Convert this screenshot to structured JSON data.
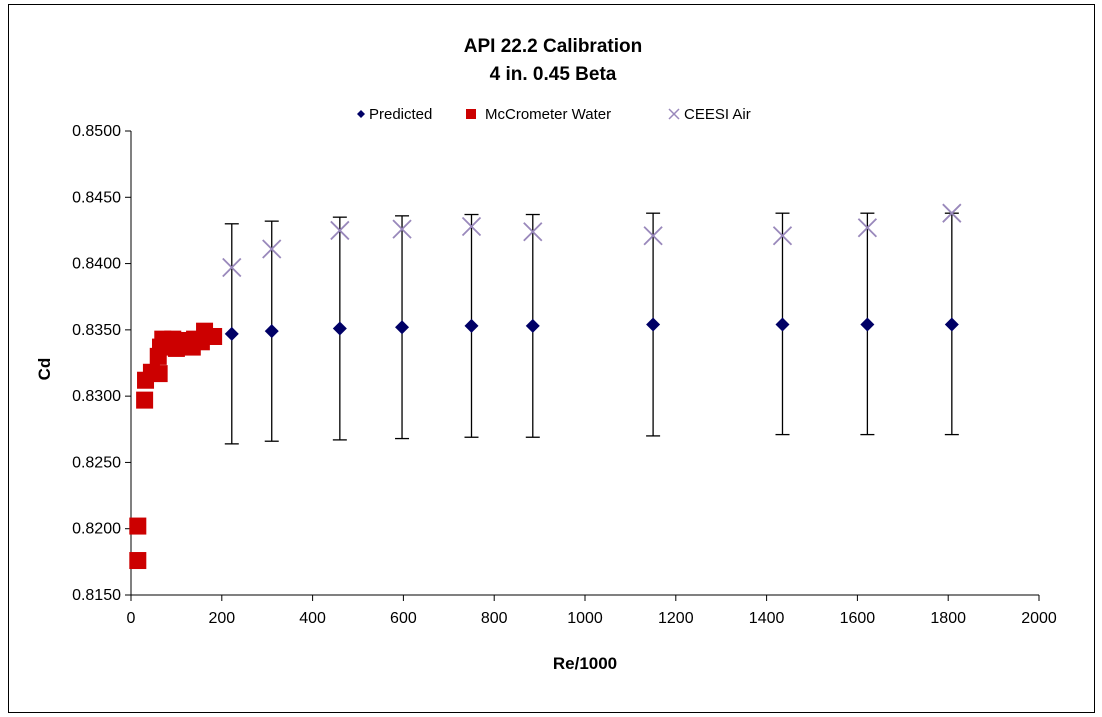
{
  "chart_data": {
    "type": "scatter",
    "title": [
      "API 22.2 Calibration",
      "4 in. 0.45 Beta"
    ],
    "xlabel": "Re/1000",
    "ylabel": "Cd",
    "xlim": [
      0,
      2000
    ],
    "ylim": [
      0.815,
      0.85
    ],
    "x_ticks": [
      0,
      200,
      400,
      600,
      800,
      1000,
      1200,
      1400,
      1600,
      1800,
      2000
    ],
    "x_tick_labels": [
      "0",
      "200",
      "400",
      "600",
      "800",
      "1000",
      "1200",
      "1400",
      "1600",
      "1800",
      "2000"
    ],
    "y_ticks": [
      0.815,
      0.82,
      0.825,
      0.83,
      0.835,
      0.84,
      0.845,
      0.85
    ],
    "y_tick_labels": [
      "0.8150",
      "0.8200",
      "0.8250",
      "0.8300",
      "0.8350",
      "0.8400",
      "0.8450",
      "0.8500"
    ],
    "grid": false,
    "legend_position": "top",
    "series": [
      {
        "name": "Predicted",
        "marker": "diamond",
        "color": "#000066",
        "points": [
          {
            "x": 222,
            "y": 0.8347,
            "err_low": 0.8264,
            "err_high": 0.843
          },
          {
            "x": 310,
            "y": 0.8349,
            "err_low": 0.8266,
            "err_high": 0.8432
          },
          {
            "x": 460,
            "y": 0.8351,
            "err_low": 0.8267,
            "err_high": 0.8435
          },
          {
            "x": 597,
            "y": 0.8352,
            "err_low": 0.8268,
            "err_high": 0.8436
          },
          {
            "x": 750,
            "y": 0.8353,
            "err_low": 0.8269,
            "err_high": 0.8437
          },
          {
            "x": 885,
            "y": 0.8353,
            "err_low": 0.8269,
            "err_high": 0.8437
          },
          {
            "x": 1150,
            "y": 0.8354,
            "err_low": 0.827,
            "err_high": 0.8438
          },
          {
            "x": 1435,
            "y": 0.8354,
            "err_low": 0.8271,
            "err_high": 0.8438
          },
          {
            "x": 1622,
            "y": 0.8354,
            "err_low": 0.8271,
            "err_high": 0.8438
          },
          {
            "x": 1808,
            "y": 0.8354,
            "err_low": 0.8271,
            "err_high": 0.8438
          }
        ]
      },
      {
        "name": "McCrometer Water",
        "marker": "square",
        "color": "#cc0000",
        "points": [
          {
            "x": 15,
            "y": 0.8176
          },
          {
            "x": 15,
            "y": 0.8202
          },
          {
            "x": 30,
            "y": 0.8297
          },
          {
            "x": 32,
            "y": 0.8312
          },
          {
            "x": 45,
            "y": 0.8318
          },
          {
            "x": 62,
            "y": 0.8317
          },
          {
            "x": 60,
            "y": 0.833
          },
          {
            "x": 65,
            "y": 0.8337
          },
          {
            "x": 70,
            "y": 0.8343
          },
          {
            "x": 82,
            "y": 0.8339
          },
          {
            "x": 92,
            "y": 0.8343
          },
          {
            "x": 100,
            "y": 0.8336
          },
          {
            "x": 110,
            "y": 0.8342
          },
          {
            "x": 122,
            "y": 0.8338
          },
          {
            "x": 135,
            "y": 0.8337
          },
          {
            "x": 140,
            "y": 0.8343
          },
          {
            "x": 155,
            "y": 0.8341
          },
          {
            "x": 162,
            "y": 0.8349
          },
          {
            "x": 182,
            "y": 0.8345
          }
        ]
      },
      {
        "name": "CEESI Air",
        "marker": "x",
        "color": "#9988bb",
        "points": [
          {
            "x": 222,
            "y": 0.8397
          },
          {
            "x": 310,
            "y": 0.8411
          },
          {
            "x": 460,
            "y": 0.8425
          },
          {
            "x": 597,
            "y": 0.8426
          },
          {
            "x": 750,
            "y": 0.8428
          },
          {
            "x": 885,
            "y": 0.8424
          },
          {
            "x": 1150,
            "y": 0.8421
          },
          {
            "x": 1435,
            "y": 0.8421
          },
          {
            "x": 1622,
            "y": 0.8427
          },
          {
            "x": 1808,
            "y": 0.8438
          }
        ]
      }
    ]
  }
}
